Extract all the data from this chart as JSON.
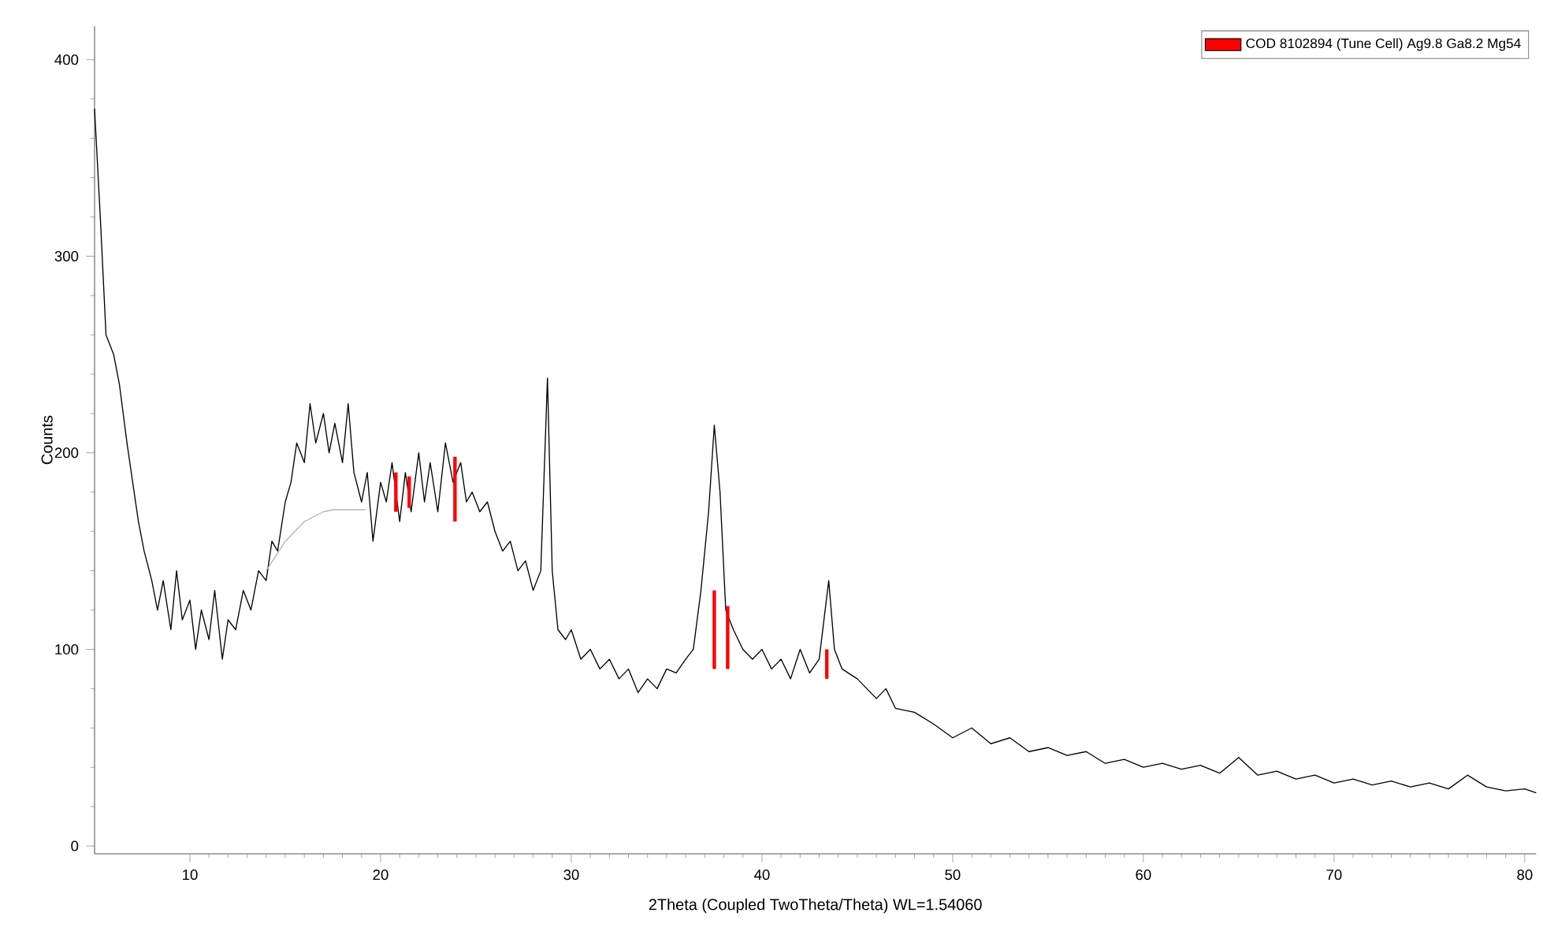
{
  "chart_data": {
    "type": "line",
    "xlabel": "2Theta (Coupled TwoTheta/Theta) WL=1.54060",
    "ylabel": "Counts",
    "xlim": [
      5,
      80.6
    ],
    "ylim": [
      -4,
      417
    ],
    "xticks": [
      10,
      20,
      30,
      40,
      50,
      60,
      70,
      80
    ],
    "yticks": [
      0,
      100,
      200,
      300,
      400
    ],
    "legend": "top right",
    "grid": false,
    "series": [
      {
        "color": "#000000",
        "x": [
          5.0,
          5.3,
          5.6,
          6.0,
          6.3,
          6.7,
          7.0,
          7.3,
          7.6,
          8.0,
          8.3,
          8.6,
          9.0,
          9.3,
          9.6,
          10.0,
          10.3,
          10.6,
          11.0,
          11.3,
          11.7,
          12.0,
          12.4,
          12.8,
          13.2,
          13.6,
          14.0,
          14.3,
          14.6,
          15.0,
          15.3,
          15.6,
          16.0,
          16.3,
          16.6,
          17.0,
          17.3,
          17.6,
          18.0,
          18.3,
          18.6,
          19.0,
          19.3,
          19.6,
          20.0,
          20.3,
          20.6,
          21.0,
          21.3,
          21.6,
          22.0,
          22.3,
          22.6,
          23.0,
          23.4,
          23.8,
          24.2,
          24.5,
          24.8,
          25.2,
          25.6,
          26.0,
          26.4,
          26.8,
          27.2,
          27.6,
          28.0,
          28.4,
          28.75,
          29.0,
          29.3,
          29.7,
          30.0,
          30.5,
          31.0,
          31.5,
          32.0,
          32.5,
          33.0,
          33.5,
          34.0,
          34.5,
          35.0,
          35.5,
          36.0,
          36.4,
          36.8,
          37.2,
          37.5,
          37.8,
          38.1,
          38.5,
          39.0,
          39.5,
          40.0,
          40.5,
          41.0,
          41.5,
          42.0,
          42.5,
          43.0,
          43.5,
          43.8,
          44.2,
          45.0,
          45.5,
          46.0,
          46.5,
          47.0,
          48.0,
          49.0,
          50.0,
          51.0,
          52.0,
          53.0,
          54.0,
          55.0,
          56.0,
          57.0,
          58.0,
          59.0,
          60.0,
          61.0,
          62.0,
          63.0,
          64.0,
          65.0,
          66.0,
          67.0,
          68.0,
          69.0,
          70.0,
          71.0,
          72.0,
          73.0,
          74.0,
          75.0,
          76.0,
          77.0,
          78.0,
          79.0,
          80.0,
          80.6
        ],
        "values": [
          375,
          320,
          260,
          250,
          235,
          205,
          185,
          165,
          150,
          135,
          120,
          135,
          110,
          140,
          115,
          125,
          100,
          120,
          105,
          130,
          95,
          115,
          110,
          130,
          120,
          140,
          135,
          155,
          150,
          175,
          185,
          205,
          195,
          225,
          205,
          220,
          200,
          215,
          195,
          225,
          190,
          175,
          190,
          155,
          185,
          175,
          195,
          165,
          190,
          170,
          200,
          175,
          195,
          170,
          205,
          185,
          195,
          175,
          180,
          170,
          175,
          160,
          150,
          155,
          140,
          145,
          130,
          140,
          238,
          140,
          110,
          105,
          110,
          95,
          100,
          90,
          95,
          85,
          90,
          78,
          85,
          80,
          90,
          88,
          95,
          100,
          130,
          170,
          214,
          180,
          120,
          110,
          100,
          95,
          100,
          90,
          95,
          85,
          100,
          88,
          95,
          135,
          100,
          90,
          85,
          80,
          75,
          80,
          70,
          68,
          62,
          55,
          60,
          52,
          55,
          48,
          50,
          46,
          48,
          42,
          44,
          40,
          42,
          39,
          41,
          37,
          45,
          36,
          38,
          34,
          36,
          32,
          34,
          31,
          33,
          30,
          32,
          29,
          36,
          30,
          28,
          29,
          27
        ]
      },
      {
        "color": "#b4b4b4",
        "x": [
          14.0,
          15.0,
          16.0,
          17.0,
          17.5,
          18.5,
          19.2
        ],
        "values": [
          140,
          155,
          165,
          170,
          171,
          171,
          171
        ]
      },
      {
        "type": "bar",
        "name": "COD 8102894 (Tune Cell) Ag9.8 Ga8.2 Mg54",
        "color": "#ff0000",
        "x": [
          20.8,
          21.5,
          23.9,
          37.5,
          38.2,
          43.4
        ],
        "base": [
          170,
          172,
          165,
          90,
          90,
          85
        ],
        "values": [
          20,
          16,
          33,
          40,
          32,
          15
        ]
      }
    ]
  }
}
